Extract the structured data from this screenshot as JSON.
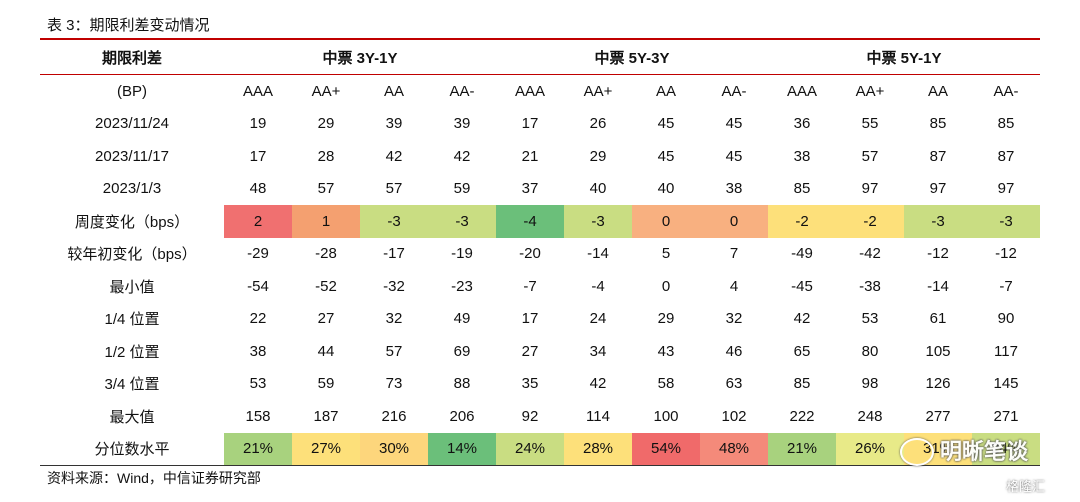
{
  "caption": "表 3：期限利差变动情况",
  "header": {
    "label": "期限利差",
    "groups": [
      "中票 3Y-1Y",
      "中票 5Y-3Y",
      "中票 5Y-1Y"
    ]
  },
  "subheader": {
    "label": "(BP)",
    "cols": [
      "AAA",
      "AA+",
      "AA",
      "AA-",
      "AAA",
      "AA+",
      "AA",
      "AA-",
      "AAA",
      "AA+",
      "AA",
      "AA-"
    ]
  },
  "rows": [
    {
      "label": "2023/11/24",
      "values": [
        "19",
        "29",
        "39",
        "39",
        "17",
        "26",
        "45",
        "45",
        "36",
        "55",
        "85",
        "85"
      ]
    },
    {
      "label": "2023/11/17",
      "values": [
        "17",
        "28",
        "42",
        "42",
        "21",
        "29",
        "45",
        "45",
        "38",
        "57",
        "87",
        "87"
      ]
    },
    {
      "label": "2023/1/3",
      "values": [
        "48",
        "57",
        "57",
        "59",
        "37",
        "40",
        "40",
        "38",
        "85",
        "97",
        "97",
        "97"
      ]
    },
    {
      "label": "周度变化（bps）",
      "values": [
        "2",
        "1",
        "-3",
        "-3",
        "-4",
        "-3",
        "0",
        "0",
        "-2",
        "-2",
        "-3",
        "-3"
      ],
      "colors": [
        "#f07070",
        "#f4a070",
        "#c9dd82",
        "#c9dd82",
        "#6bbf7a",
        "#c9dd82",
        "#f8b080",
        "#f8b080",
        "#fde07a",
        "#fde07a",
        "#c9dd82",
        "#c9dd82"
      ]
    },
    {
      "label": "较年初变化（bps）",
      "values": [
        "-29",
        "-28",
        "-17",
        "-19",
        "-20",
        "-14",
        "5",
        "7",
        "-49",
        "-42",
        "-12",
        "-12"
      ]
    },
    {
      "label": "最小值",
      "values": [
        "-54",
        "-52",
        "-32",
        "-23",
        "-7",
        "-4",
        "0",
        "4",
        "-45",
        "-38",
        "-14",
        "-7"
      ]
    },
    {
      "label": "1/4 位置",
      "values": [
        "22",
        "27",
        "32",
        "49",
        "17",
        "24",
        "29",
        "32",
        "42",
        "53",
        "61",
        "90"
      ]
    },
    {
      "label": "1/2 位置",
      "values": [
        "38",
        "44",
        "57",
        "69",
        "27",
        "34",
        "43",
        "46",
        "65",
        "80",
        "105",
        "117"
      ]
    },
    {
      "label": "3/4 位置",
      "values": [
        "53",
        "59",
        "73",
        "88",
        "35",
        "42",
        "58",
        "63",
        "85",
        "98",
        "126",
        "145"
      ]
    },
    {
      "label": "最大值",
      "values": [
        "158",
        "187",
        "216",
        "206",
        "92",
        "114",
        "100",
        "102",
        "222",
        "248",
        "277",
        "271"
      ]
    },
    {
      "label": "分位数水平",
      "values": [
        "21%",
        "27%",
        "30%",
        "14%",
        "24%",
        "28%",
        "54%",
        "48%",
        "21%",
        "26%",
        "31%",
        "24%"
      ],
      "colors": [
        "#a8d27e",
        "#fde07a",
        "#fdd67c",
        "#6bbf7a",
        "#c9dd82",
        "#fde07a",
        "#f06a6a",
        "#f48a7a",
        "#a8d27e",
        "#e8ea88",
        "#fde07a",
        "#c9dd82"
      ]
    }
  ],
  "source": "资料来源：Wind，中信证券研究部",
  "watermark": {
    "text": "明晰笔谈",
    "small": "格隆汇"
  }
}
